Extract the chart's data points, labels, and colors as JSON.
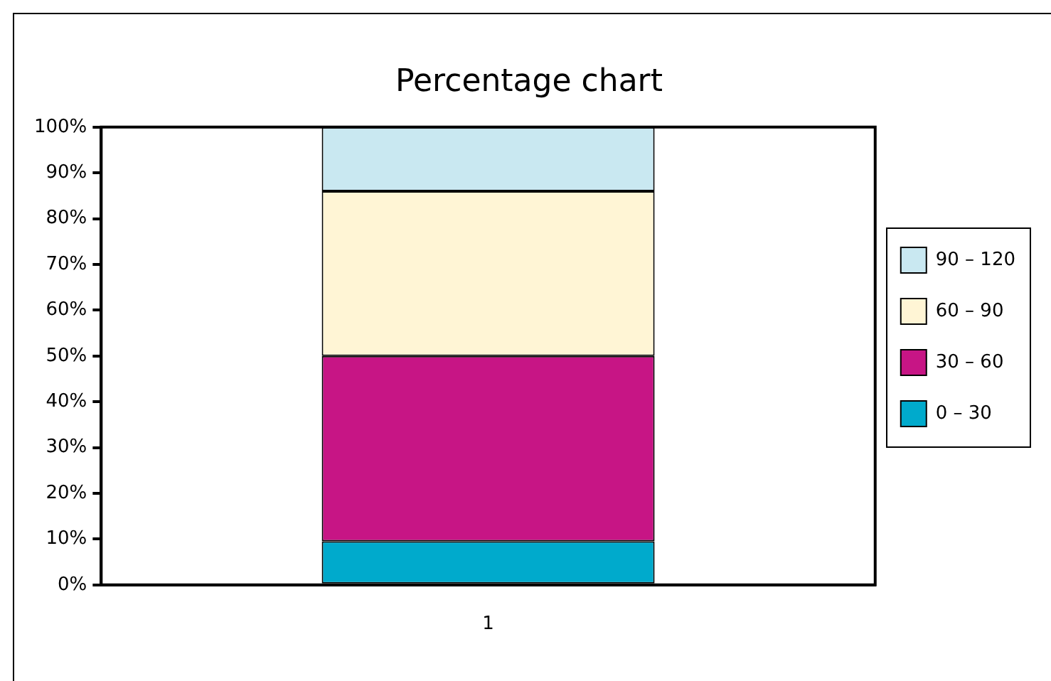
{
  "chart_data": {
    "type": "bar",
    "title": "Percentage chart",
    "categories": [
      "1"
    ],
    "stacked": true,
    "series": [
      {
        "name": "0 – 30",
        "color": "#00aacc",
        "values": [
          9.5
        ]
      },
      {
        "name": "30 – 60",
        "color": "#c71585",
        "values": [
          40.5
        ]
      },
      {
        "name": "60 – 90",
        "color": "#fff5d5",
        "values": [
          36
        ]
      },
      {
        "name": "90 – 120",
        "color": "#c9e8f1",
        "values": [
          14
        ]
      }
    ],
    "ylim": [
      0,
      100
    ],
    "yticks": [
      {
        "value": 0,
        "label": "0%"
      },
      {
        "value": 10,
        "label": "10%"
      },
      {
        "value": 20,
        "label": "20%"
      },
      {
        "value": 30,
        "label": "30%"
      },
      {
        "value": 40,
        "label": "40%"
      },
      {
        "value": 50,
        "label": "50%"
      },
      {
        "value": 60,
        "label": "60%"
      },
      {
        "value": 70,
        "label": "70%"
      },
      {
        "value": 80,
        "label": "80%"
      },
      {
        "value": 90,
        "label": "90%"
      },
      {
        "value": 100,
        "label": "100%"
      }
    ],
    "grid": false,
    "legend": "right"
  }
}
